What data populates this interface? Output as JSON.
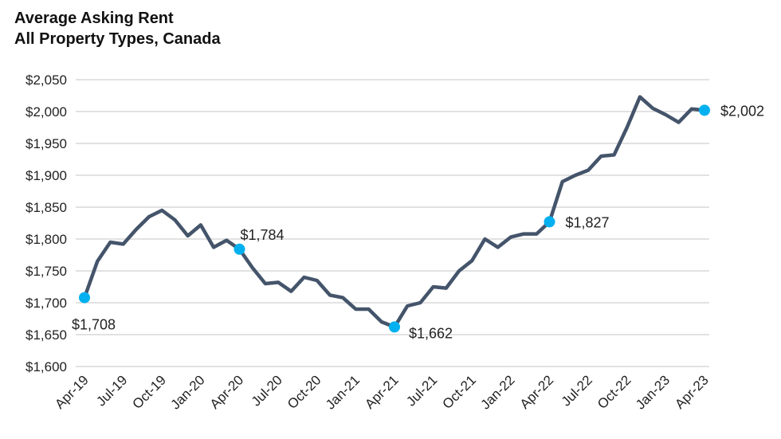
{
  "chart_data": {
    "type": "line",
    "title": "Average Asking Rent",
    "subtitle": "All Property Types, Canada",
    "xlabel": "",
    "ylabel": "",
    "ylim": [
      1600,
      2050
    ],
    "yticks": [
      "$1,600",
      "$1,650",
      "$1,700",
      "$1,750",
      "$1,800",
      "$1,850",
      "$1,900",
      "$1,950",
      "$2,000",
      "$2,050"
    ],
    "ytick_values": [
      1600,
      1650,
      1700,
      1750,
      1800,
      1850,
      1900,
      1950,
      2000,
      2050
    ],
    "xtick_labels": [
      "Apr-19",
      "Jul-19",
      "Oct-19",
      "Jan-20",
      "Apr-20",
      "Jul-20",
      "Oct-20",
      "Jan-21",
      "Apr-21",
      "Jul-21",
      "Oct-21",
      "Jan-22",
      "Apr-22",
      "Jul-22",
      "Oct-22",
      "Jan-23",
      "Apr-23"
    ],
    "grid": "horizontal",
    "line_color": "#44546a",
    "marker_color": "#00b0f0",
    "x": [
      "Apr-19",
      "May-19",
      "Jun-19",
      "Jul-19",
      "Aug-19",
      "Sep-19",
      "Oct-19",
      "Nov-19",
      "Dec-19",
      "Jan-20",
      "Feb-20",
      "Mar-20",
      "Apr-20",
      "May-20",
      "Jun-20",
      "Jul-20",
      "Aug-20",
      "Sep-20",
      "Oct-20",
      "Nov-20",
      "Dec-20",
      "Jan-21",
      "Feb-21",
      "Mar-21",
      "Apr-21",
      "May-21",
      "Jun-21",
      "Jul-21",
      "Aug-21",
      "Sep-21",
      "Oct-21",
      "Nov-21",
      "Dec-21",
      "Jan-22",
      "Feb-22",
      "Mar-22",
      "Apr-22",
      "May-22",
      "Jun-22",
      "Jul-22",
      "Aug-22",
      "Sep-22",
      "Oct-22",
      "Nov-22",
      "Dec-22",
      "Jan-23",
      "Feb-23",
      "Mar-23",
      "Apr-23"
    ],
    "values": [
      1708,
      1765,
      1795,
      1792,
      1815,
      1835,
      1845,
      1830,
      1805,
      1822,
      1787,
      1798,
      1784,
      1755,
      1730,
      1732,
      1718,
      1740,
      1735,
      1712,
      1708,
      1690,
      1690,
      1670,
      1662,
      1695,
      1700,
      1725,
      1723,
      1750,
      1766,
      1800,
      1787,
      1803,
      1808,
      1808,
      1827,
      1890,
      1900,
      1908,
      1930,
      1932,
      1975,
      2023,
      2005,
      1995,
      1983,
      2004,
      2002
    ],
    "annotations": [
      {
        "x": "Apr-19",
        "label": "$1,708",
        "position": "below"
      },
      {
        "x": "Apr-20",
        "label": "$1,784",
        "position": "above"
      },
      {
        "x": "Apr-21",
        "label": "$1,662",
        "position": "right"
      },
      {
        "x": "Apr-22",
        "label": "$1,827",
        "position": "right"
      },
      {
        "x": "Apr-23",
        "label": "$2,002",
        "position": "right"
      }
    ]
  }
}
